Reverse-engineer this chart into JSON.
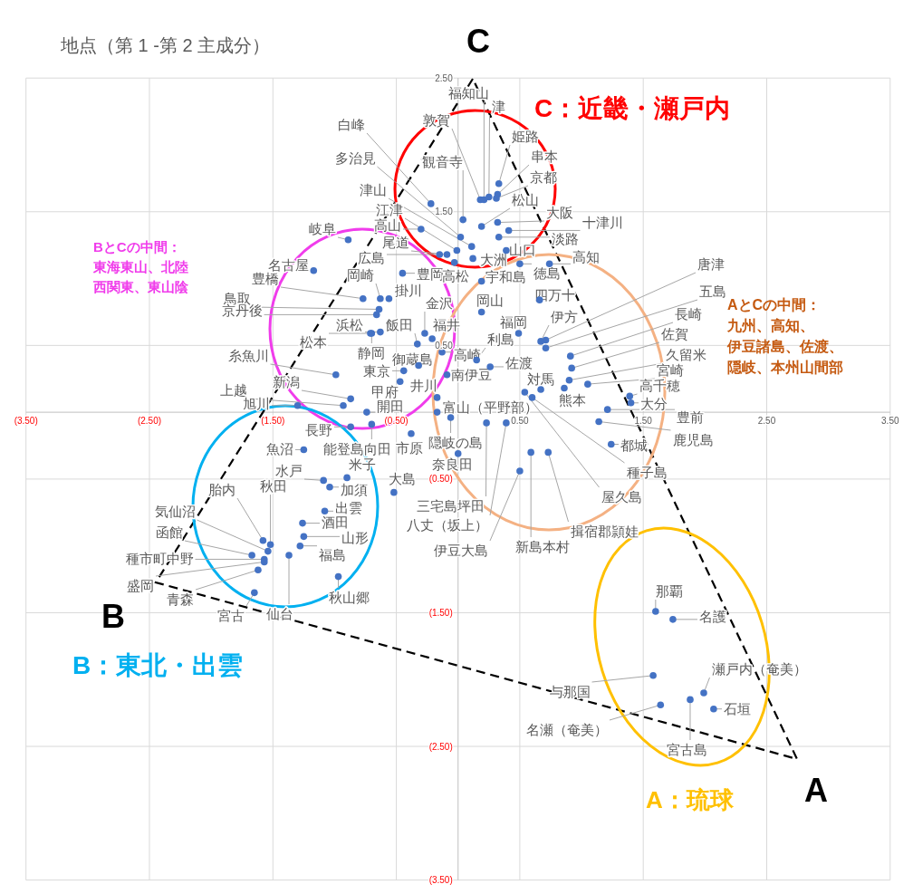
{
  "chart_data": {
    "type": "scatter",
    "title": "地点（第 1 -第 2 主成分）",
    "color": "#4472c4",
    "marker": "circle",
    "grid": true,
    "xlim": [
      -3.5,
      3.5
    ],
    "ylim": [
      -3.5,
      2.5
    ],
    "xticks": [
      {
        "value": -3.5,
        "label": "(3.50)"
      },
      {
        "value": -2.5,
        "label": "(2.50)"
      },
      {
        "value": -1.5,
        "label": "(1.50)"
      },
      {
        "value": -0.5,
        "label": "(0.50)"
      },
      {
        "value": 0.5,
        "label": "0.50"
      },
      {
        "value": 1.5,
        "label": "1.50"
      },
      {
        "value": 2.5,
        "label": "2.50"
      },
      {
        "value": 3.5,
        "label": "3.50"
      }
    ],
    "yticks": [
      {
        "value": 2.5,
        "label": "2.50"
      },
      {
        "value": 1.5,
        "label": "1.50"
      },
      {
        "value": 0.5,
        "label": "0.50"
      },
      {
        "value": -0.5,
        "label": "(0.50)"
      },
      {
        "value": -1.5,
        "label": "(1.50)"
      },
      {
        "value": -2.5,
        "label": "(2.50)"
      },
      {
        "value": -3.5,
        "label": "(3.50)"
      }
    ],
    "x": [
      0.21,
      0.25,
      0.18,
      0.33,
      0.32,
      0.31,
      -0.22,
      0.02,
      0.04,
      0.11,
      0.19,
      -0.01,
      0.32,
      0.41,
      -0.3,
      0.33,
      -0.09,
      0.39,
      0.74,
      -0.15,
      0.12,
      0.5,
      -0.45,
      -0.03,
      0.19,
      0.66,
      0.19,
      0.71,
      0.71,
      0.91,
      0.67,
      0.92,
      0.49,
      0.15,
      0.9,
      0.26,
      1.05,
      0.67,
      1.39,
      0.86,
      1.4,
      1.21,
      1.14,
      1.24,
      0.6,
      0.54,
      0.73,
      0.59,
      0.5,
      0.39,
      0.23,
      -0.52,
      0.0,
      -0.06,
      -0.38,
      -0.17,
      -0.17,
      -0.09,
      -0.13,
      -0.27,
      -0.21,
      -0.33,
      -0.32,
      -0.44,
      -0.47,
      -0.74,
      -0.7,
      -0.63,
      -0.71,
      -0.99,
      -0.87,
      -0.93,
      -1.3,
      -0.87,
      -0.7,
      -1.25,
      -0.9,
      -1.09,
      -1.04,
      -1.52,
      -1.58,
      -1.08,
      -1.54,
      -1.26,
      -1.67,
      -1.25,
      -1.28,
      -1.57,
      -1.57,
      -0.97,
      -1.62,
      -1.65,
      -1.37,
      -0.89,
      -1.17,
      -0.77,
      -0.64,
      -0.63,
      -0.56,
      -0.66,
      1.6,
      1.74,
      1.58,
      1.99,
      2.07,
      1.64,
      1.88
    ],
    "values": [
      1.59,
      1.61,
      1.59,
      1.71,
      1.63,
      1.6,
      1.56,
      1.31,
      1.44,
      1.24,
      1.39,
      1.21,
      1.42,
      1.36,
      1.37,
      1.31,
      1.18,
      1.21,
      1.11,
      1.18,
      1.15,
      1.11,
      1.04,
      1.12,
      0.98,
      0.84,
      0.75,
      0.54,
      0.48,
      0.42,
      0.53,
      0.33,
      0.59,
      0.39,
      0.24,
      0.34,
      0.21,
      0.17,
      0.12,
      0.18,
      0.07,
      0.02,
      -0.07,
      -0.24,
      0.11,
      0.15,
      -0.3,
      -0.3,
      -0.44,
      -0.08,
      -0.08,
      -0.6,
      -0.31,
      -0.04,
      -0.16,
      0.0,
      0.11,
      0.28,
      0.45,
      0.59,
      0.55,
      0.51,
      0.35,
      0.31,
      0.23,
      0.0,
      0.59,
      0.6,
      0.59,
      0.28,
      0.1,
      0.05,
      0.05,
      -0.11,
      -0.09,
      -0.28,
      -0.49,
      -0.51,
      -0.56,
      -0.99,
      -0.96,
      -0.74,
      -1.04,
      -0.83,
      -1.07,
      -0.93,
      -1.0,
      -1.1,
      -1.12,
      -1.23,
      -1.18,
      -1.35,
      -1.07,
      1.29,
      1.06,
      0.85,
      0.77,
      0.85,
      0.85,
      0.73,
      -1.49,
      -1.55,
      -1.97,
      -2.1,
      -2.22,
      -2.19,
      -2.15
    ],
    "annotations": [
      {
        "text": "福知山",
        "x": 0.21,
        "y": 1.59
      },
      {
        "text": "津",
        "x": 0.25,
        "y": 1.61
      },
      {
        "text": "敦賀",
        "x": 0.18,
        "y": 1.59
      },
      {
        "text": "姫路",
        "x": 0.33,
        "y": 1.71
      },
      {
        "text": "串本",
        "x": 0.32,
        "y": 1.63
      },
      {
        "text": "京都",
        "x": 0.31,
        "y": 1.6
      },
      {
        "text": "白峰",
        "x": -0.22,
        "y": 1.56
      },
      {
        "text": "多治見",
        "x": 0.02,
        "y": 1.31
      },
      {
        "text": "観音寺",
        "x": 0.04,
        "y": 1.44
      },
      {
        "text": "津山",
        "x": 0.11,
        "y": 1.24
      },
      {
        "text": "松山",
        "x": 0.19,
        "y": 1.39
      },
      {
        "text": "江津",
        "x": -0.01,
        "y": 1.21
      },
      {
        "text": "大阪",
        "x": 0.32,
        "y": 1.42
      },
      {
        "text": "十津川",
        "x": 0.41,
        "y": 1.36
      },
      {
        "text": "高山",
        "x": -0.3,
        "y": 1.37
      },
      {
        "text": "淡路",
        "x": 0.33,
        "y": 1.31
      },
      {
        "text": "尾道",
        "x": -0.09,
        "y": 1.18
      },
      {
        "text": "山口",
        "x": 0.39,
        "y": 1.21
      },
      {
        "text": "高知",
        "x": 0.74,
        "y": 1.11
      },
      {
        "text": "広島",
        "x": -0.15,
        "y": 1.18
      },
      {
        "text": "大洲",
        "x": 0.12,
        "y": 1.15
      },
      {
        "text": "徳島",
        "x": 0.5,
        "y": 1.11
      },
      {
        "text": "豊岡",
        "x": -0.45,
        "y": 1.04
      },
      {
        "text": "高松",
        "x": -0.03,
        "y": 1.12
      },
      {
        "text": "宇和島",
        "x": 0.19,
        "y": 0.98
      },
      {
        "text": "四万十",
        "x": 0.66,
        "y": 0.84
      },
      {
        "text": "岡山",
        "x": 0.19,
        "y": 0.75
      },
      {
        "text": "唐津",
        "x": 0.71,
        "y": 0.54
      },
      {
        "text": "五島",
        "x": 0.71,
        "y": 0.48
      },
      {
        "text": "長崎",
        "x": 0.91,
        "y": 0.42
      },
      {
        "text": "伊方",
        "x": 0.67,
        "y": 0.53
      },
      {
        "text": "佐賀",
        "x": 0.92,
        "y": 0.33
      },
      {
        "text": "福岡",
        "x": 0.49,
        "y": 0.59
      },
      {
        "text": "利島",
        "x": 0.15,
        "y": 0.39
      },
      {
        "text": "久留米",
        "x": 0.9,
        "y": 0.24
      },
      {
        "text": "佐渡",
        "x": 0.26,
        "y": 0.34
      },
      {
        "text": "宮崎",
        "x": 1.05,
        "y": 0.21
      },
      {
        "text": "対馬",
        "x": 0.67,
        "y": 0.17
      },
      {
        "text": "高千穂",
        "x": 1.39,
        "y": 0.12
      },
      {
        "text": "熊本",
        "x": 0.86,
        "y": 0.18
      },
      {
        "text": "大分",
        "x": 1.4,
        "y": 0.07
      },
      {
        "text": "豊前",
        "x": 1.21,
        "y": 0.02
      },
      {
        "text": "鹿児島",
        "x": 1.14,
        "y": -0.07
      },
      {
        "text": "都城",
        "x": 1.24,
        "y": -0.24
      },
      {
        "text": "種子島",
        "x": 0.6,
        "y": 0.11
      },
      {
        "text": "屋久島",
        "x": 0.54,
        "y": 0.15
      },
      {
        "text": "揖宿郡頴娃",
        "x": 0.73,
        "y": -0.3
      },
      {
        "text": "新島本村",
        "x": 0.59,
        "y": -0.3
      },
      {
        "text": "伊豆大島",
        "x": 0.5,
        "y": -0.44
      },
      {
        "text": "八丈（坂上）",
        "x": 0.39,
        "y": -0.08
      },
      {
        "text": "三宅島坪田",
        "x": 0.23,
        "y": -0.08
      },
      {
        "text": "大島",
        "x": -0.52,
        "y": -0.6
      },
      {
        "text": "奈良田",
        "x": 0.0,
        "y": -0.31
      },
      {
        "text": "隠岐の島",
        "x": -0.06,
        "y": -0.04
      },
      {
        "text": "市原",
        "x": -0.38,
        "y": -0.16
      },
      {
        "text": "富山（平野部）",
        "x": -0.17,
        "y": 0.0
      },
      {
        "text": "井川",
        "x": -0.17,
        "y": 0.11
      },
      {
        "text": "南伊豆",
        "x": -0.09,
        "y": 0.28
      },
      {
        "text": "高崎",
        "x": -0.13,
        "y": 0.45
      },
      {
        "text": "金沢",
        "x": -0.27,
        "y": 0.59
      },
      {
        "text": "福井",
        "x": -0.21,
        "y": 0.55
      },
      {
        "text": "飯田",
        "x": -0.33,
        "y": 0.51
      },
      {
        "text": "御蔵島",
        "x": -0.32,
        "y": 0.35
      },
      {
        "text": "東京",
        "x": -0.44,
        "y": 0.31
      },
      {
        "text": "甲府",
        "x": -0.47,
        "y": 0.23
      },
      {
        "text": "開田",
        "x": -0.74,
        "y": 0.0
      },
      {
        "text": "静岡",
        "x": -0.7,
        "y": 0.59
      },
      {
        "text": "浜松",
        "x": -0.63,
        "y": 0.6
      },
      {
        "text": "松本",
        "x": -0.71,
        "y": 0.59
      },
      {
        "text": "糸魚川",
        "x": -0.99,
        "y": 0.28
      },
      {
        "text": "新潟",
        "x": -0.87,
        "y": 0.1
      },
      {
        "text": "上越",
        "x": -0.93,
        "y": 0.05
      },
      {
        "text": "旭川",
        "x": -1.3,
        "y": 0.05
      },
      {
        "text": "長野",
        "x": -0.87,
        "y": -0.11
      },
      {
        "text": "能登島向田",
        "x": -0.7,
        "y": -0.09
      },
      {
        "text": "魚沼",
        "x": -1.25,
        "y": -0.28
      },
      {
        "text": "米子",
        "x": -0.9,
        "y": -0.49
      },
      {
        "text": "水戸",
        "x": -1.09,
        "y": -0.51
      },
      {
        "text": "加須",
        "x": -1.04,
        "y": -0.56
      },
      {
        "text": "秋田",
        "x": -1.52,
        "y": -0.99
      },
      {
        "text": "胎内",
        "x": -1.58,
        "y": -0.96
      },
      {
        "text": "出雲",
        "x": -1.08,
        "y": -0.74
      },
      {
        "text": "気仙沼",
        "x": -1.54,
        "y": -1.04
      },
      {
        "text": "酒田",
        "x": -1.26,
        "y": -0.83
      },
      {
        "text": "函館",
        "x": -1.67,
        "y": -1.07
      },
      {
        "text": "山形",
        "x": -1.25,
        "y": -0.93
      },
      {
        "text": "福島",
        "x": -1.28,
        "y": -1.0
      },
      {
        "text": "種市町中野",
        "x": -1.57,
        "y": -1.1
      },
      {
        "text": "盛岡",
        "x": -1.57,
        "y": -1.12
      },
      {
        "text": "秋山郷",
        "x": -0.97,
        "y": -1.23
      },
      {
        "text": "青森",
        "x": -1.62,
        "y": -1.18
      },
      {
        "text": "宮古",
        "x": -1.65,
        "y": -1.35
      },
      {
        "text": "仙台",
        "x": -1.37,
        "y": -1.07
      },
      {
        "text": "岐阜",
        "x": -0.89,
        "y": 1.29
      },
      {
        "text": "名古屋",
        "x": -1.17,
        "y": 1.06
      },
      {
        "text": "豊橋",
        "x": -0.77,
        "y": 0.85
      },
      {
        "text": "鳥取",
        "x": -0.64,
        "y": 0.77
      },
      {
        "text": "岡崎",
        "x": -0.63,
        "y": 0.85
      },
      {
        "text": "掛川",
        "x": -0.56,
        "y": 0.85
      },
      {
        "text": "京丹後",
        "x": -0.66,
        "y": 0.73
      },
      {
        "text": "那覇",
        "x": 1.6,
        "y": -1.49
      },
      {
        "text": "名護",
        "x": 1.74,
        "y": -1.55
      },
      {
        "text": "与那国",
        "x": 1.58,
        "y": -1.97
      },
      {
        "text": "瀬戸内（奄美）",
        "x": 1.99,
        "y": -2.1
      },
      {
        "text": "石垣",
        "x": 2.07,
        "y": -2.22
      },
      {
        "text": "名瀬（奄美）",
        "x": 1.64,
        "y": -2.19
      },
      {
        "text": "宮古島",
        "x": 1.88,
        "y": -2.15
      },
      "C：近畿・瀬戸内",
      "B：東北・出雲",
      "A：琉球",
      "BとCの中間：",
      "東海東山、北陸",
      "西関東、東山陰",
      "AとCの中間：",
      "九州、高知、",
      "伊豆諸島、佐渡、",
      "隠岐、本州山間部",
      "A",
      "B",
      "C"
    ]
  }
}
